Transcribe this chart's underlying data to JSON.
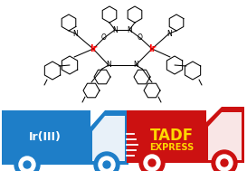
{
  "bg_color": "#ffffff",
  "blue_truck_color": "#1e7ec8",
  "red_truck_color": "#cc1111",
  "white_color": "#ffffff",
  "yellow_color": "#ffd700",
  "black_color": "#000000",
  "ir_label": "Ir(III)",
  "tadf_label": "TADF",
  "express_label": "EXPRESS",
  "ir_text_color": "#ffffff",
  "tadf_text_color": "#ffd700",
  "express_text_color": "#ffd700",
  "molecule_color": "#000000",
  "ir_atom_color": "#ff0000",
  "figsize": [
    2.73,
    1.89
  ],
  "dpi": 100
}
